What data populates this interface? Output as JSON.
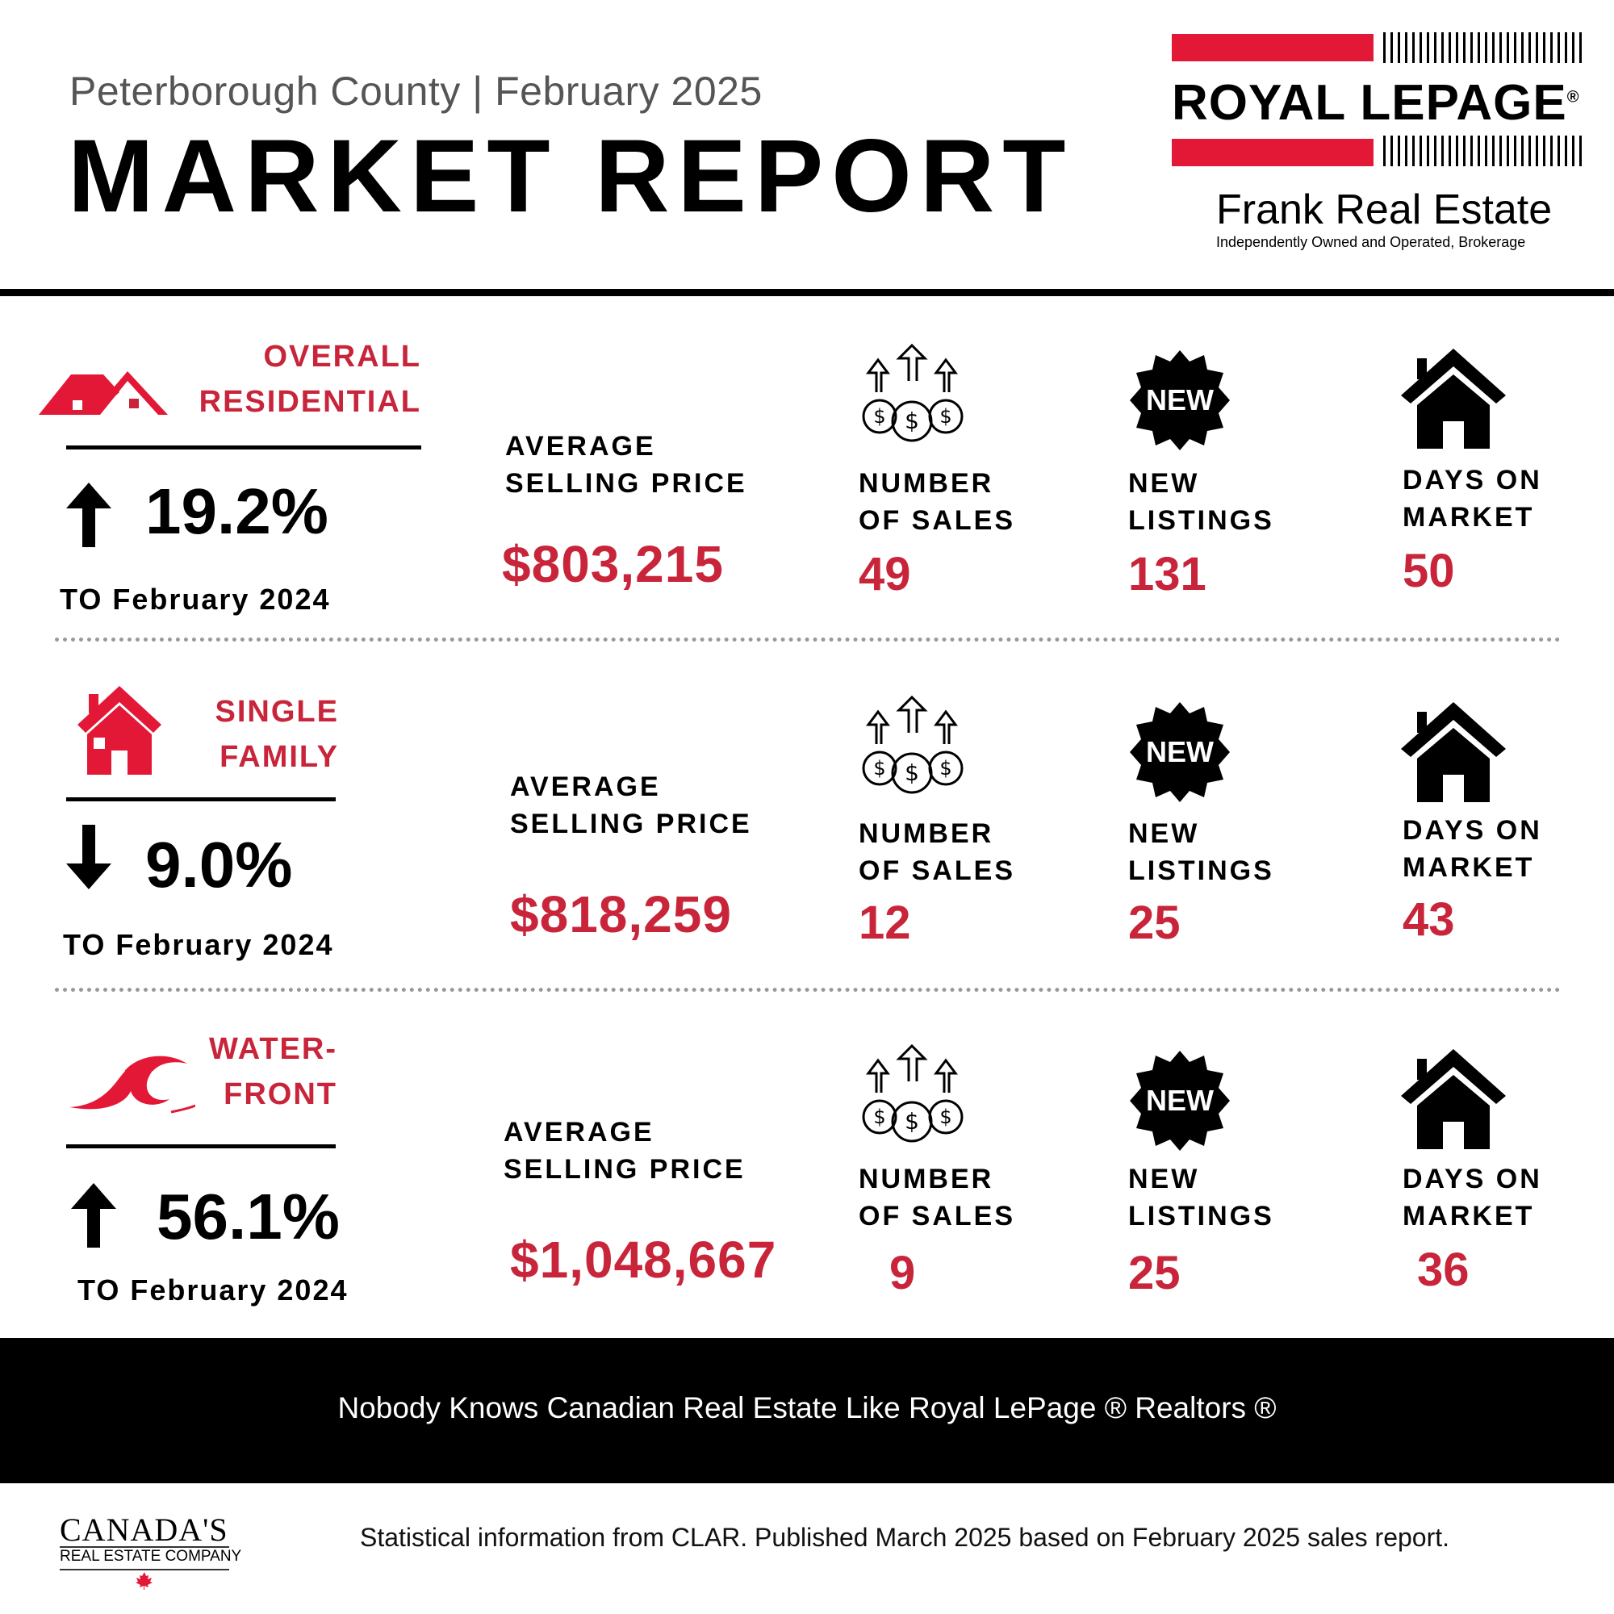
{
  "header": {
    "subtitle": "Peterborough County | February 2025",
    "title": "MARKET REPORT"
  },
  "logo": {
    "wordmark": "ROYAL LEPAGE",
    "registered": "®",
    "brand": "Frank Real Estate",
    "tagline": "Independently Owned and Operated, Brokerage"
  },
  "labels": {
    "avg_price": [
      "AVERAGE",
      "SELLING PRICE"
    ],
    "num_sales": [
      "NUMBER",
      "OF SALES"
    ],
    "new_listings": [
      "NEW",
      "LISTINGS"
    ],
    "days_on_market": [
      "DAYS ON",
      "MARKET"
    ],
    "new_badge": "NEW"
  },
  "sections": [
    {
      "category": [
        "OVERALL",
        "RESIDENTIAL"
      ],
      "direction": "up",
      "change": "19.2%",
      "compare": "TO February 2024",
      "avg_price": "$803,215",
      "num_sales": "49",
      "new_listings": "131",
      "days_on_market": "50"
    },
    {
      "category": [
        "SINGLE",
        "FAMILY"
      ],
      "direction": "down",
      "change": "9.0%",
      "compare": "TO February 2024",
      "avg_price": "$818,259",
      "num_sales": "12",
      "new_listings": "25",
      "days_on_market": "43"
    },
    {
      "category": [
        "WATER-",
        "FRONT"
      ],
      "direction": "up",
      "change": "56.1%",
      "compare": "TO February 2024",
      "avg_price": "$1,048,667",
      "num_sales": "9",
      "new_listings": "25",
      "days_on_market": "36"
    }
  ],
  "footer": {
    "slogan": "Nobody Knows Canadian Real Estate Like Royal LePage ® Realtors ®",
    "company_line1": "CANADA'S",
    "company_line2": "REAL ESTATE COMPANY",
    "source": "Statistical information from CLAR. Published March 2025  based on February 2025 sales report."
  },
  "colors": {
    "accent": "#c8243a",
    "brand_red": "#e31837",
    "text": "#000000",
    "footer_bg": "#000000"
  },
  "icons": {
    "overall": "roofs-icon",
    "single_family": "house-icon",
    "waterfront": "wave-icon",
    "sales": "money-growth-icon",
    "listings": "new-badge-icon",
    "days": "home-icon"
  }
}
